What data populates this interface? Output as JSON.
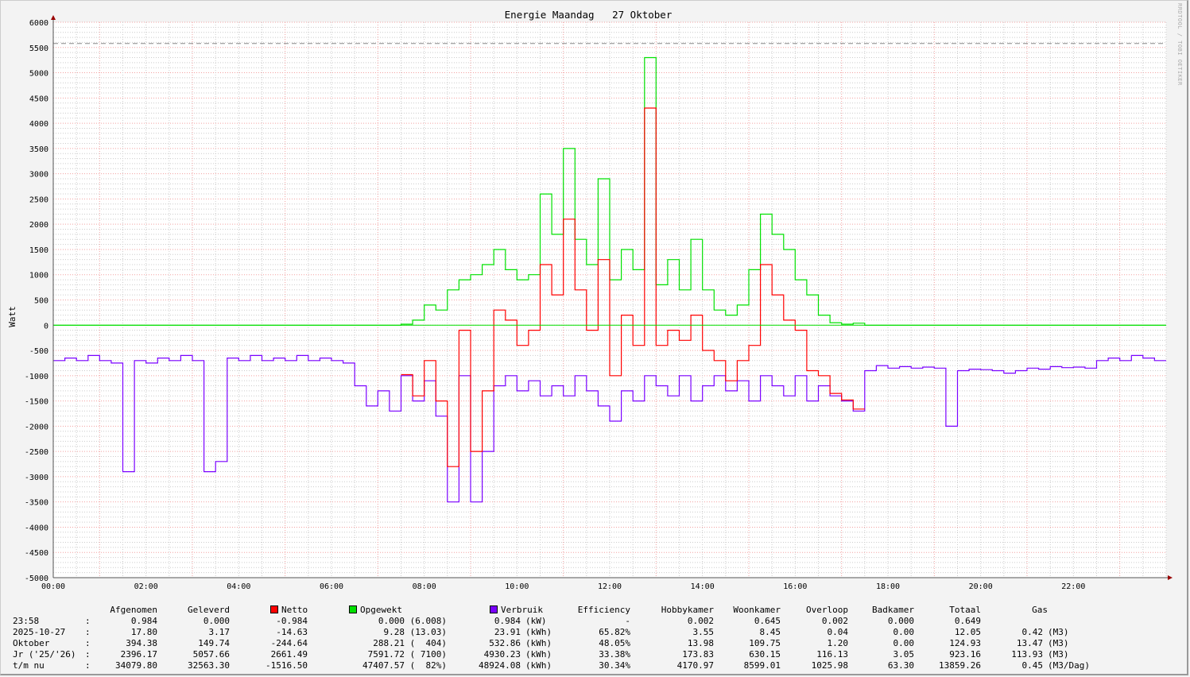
{
  "chart_data": {
    "type": "line",
    "title": "Energie Maandag   27 Oktober",
    "ylabel": "Watt",
    "watermark": "RRDTOOL / TOBI OETIKER",
    "ylim": [
      -5000,
      6000
    ],
    "yticks": [
      6000,
      5500,
      5000,
      4500,
      4000,
      3500,
      3000,
      2500,
      2000,
      1500,
      1000,
      500,
      0,
      -500,
      -1000,
      -1500,
      -2000,
      -2500,
      -3000,
      -3500,
      -4000,
      -4500,
      -5000
    ],
    "xticks": [
      "00:00",
      "02:00",
      "04:00",
      "06:00",
      "08:00",
      "10:00",
      "12:00",
      "14:00",
      "16:00",
      "18:00",
      "20:00",
      "22:00"
    ],
    "x_interval_minutes": 15,
    "reference_line": 5580,
    "series": [
      {
        "name": "Opgewekt",
        "color": "#00e000",
        "values": [
          0,
          0,
          0,
          0,
          0,
          0,
          0,
          0,
          0,
          0,
          0,
          0,
          0,
          0,
          0,
          0,
          0,
          0,
          0,
          0,
          0,
          0,
          0,
          0,
          0,
          0,
          0,
          0,
          0,
          0,
          20,
          100,
          400,
          300,
          700,
          900,
          1000,
          1200,
          1500,
          1100,
          900,
          1000,
          2600,
          1800,
          3500,
          1700,
          1200,
          2900,
          900,
          1500,
          1100,
          5300,
          800,
          1300,
          700,
          1700,
          700,
          300,
          200,
          400,
          1100,
          2200,
          1800,
          1500,
          900,
          600,
          200,
          50,
          20,
          40,
          0,
          0,
          0,
          0,
          0,
          0,
          0,
          0,
          0,
          0,
          0,
          0,
          0,
          0,
          0,
          0,
          0,
          0,
          0,
          0,
          0,
          0,
          0,
          0,
          0,
          0
        ]
      },
      {
        "name": "Verbruik",
        "color": "#7a00ff",
        "values": [
          -700,
          -650,
          -700,
          -600,
          -700,
          -750,
          -2900,
          -700,
          -750,
          -650,
          -700,
          -600,
          -700,
          -2900,
          -2700,
          -650,
          -700,
          -600,
          -700,
          -650,
          -700,
          -600,
          -700,
          -650,
          -700,
          -750,
          -1200,
          -1600,
          -1300,
          -1700,
          -1000,
          -1500,
          -1100,
          -1800,
          -3500,
          -1000,
          -3500,
          -2500,
          -1200,
          -1000,
          -1300,
          -1100,
          -1400,
          -1200,
          -1400,
          -1000,
          -1300,
          -1600,
          -1900,
          -1300,
          -1500,
          -1000,
          -1200,
          -1400,
          -1000,
          -1500,
          -1200,
          -1000,
          -1300,
          -1100,
          -1500,
          -1000,
          -1200,
          -1400,
          -1000,
          -1500,
          -1200,
          -1400,
          -1500,
          -1700,
          -900,
          -800,
          -850,
          -820,
          -850,
          -830,
          -850,
          -2000,
          -900,
          -870,
          -880,
          -900,
          -950,
          -900,
          -850,
          -870,
          -820,
          -840,
          -830,
          -850,
          -700,
          -650,
          -700,
          -600,
          -650,
          -700
        ]
      },
      {
        "name": "Netto",
        "color": "#ff0000",
        "derived": "Opgewekt + Verbruik"
      }
    ]
  },
  "table": {
    "headers": [
      "Afgenomen",
      "Geleverd",
      "Netto",
      "Opgewekt",
      "Verbruik",
      "Efficiency",
      "Hobbykamer",
      "Woonkamer",
      "Overloop",
      "Badkamer",
      "Totaal",
      "Gas"
    ],
    "rows": [
      {
        "label": "23:58",
        "sep": ":",
        "afgenomen": "0.984",
        "geleverd": "0.000",
        "netto": "-0.984",
        "opgewekt": "0.000 (6.008)",
        "verbruik": "0.984",
        "verbruik_unit": "(kW)",
        "efficiency": "-",
        "hobbykamer": "0.002",
        "woonkamer": "0.645",
        "overloop": "0.002",
        "badkamer": "0.000",
        "totaal": "0.649",
        "gas": "",
        "gas_unit": ""
      },
      {
        "label": "2025-10-27",
        "sep": ":",
        "afgenomen": "17.80",
        "geleverd": "3.17",
        "netto": "-14.63",
        "opgewekt": "9.28 (13.03)",
        "verbruik": "23.91",
        "verbruik_unit": "(kWh)",
        "efficiency": "65.82%",
        "hobbykamer": "3.55",
        "woonkamer": "8.45",
        "overloop": "0.04",
        "badkamer": "0.00",
        "totaal": "12.05",
        "gas": "0.42",
        "gas_unit": "(M3)"
      },
      {
        "label": "Oktober",
        "sep": ":",
        "afgenomen": "394.38",
        "geleverd": "149.74",
        "netto": "-244.64",
        "opgewekt": "288.21 (  404)",
        "verbruik": "532.86",
        "verbruik_unit": "(kWh)",
        "efficiency": "48.05%",
        "hobbykamer": "13.98",
        "woonkamer": "109.75",
        "overloop": "1.20",
        "badkamer": "0.00",
        "totaal": "124.93",
        "gas": "13.47",
        "gas_unit": "(M3)"
      },
      {
        "label": "Jr ('25/'26)",
        "sep": ":",
        "afgenomen": "2396.17",
        "geleverd": "5057.66",
        "netto": "2661.49",
        "opgewekt": "7591.72 ( 7100)",
        "verbruik": "4930.23",
        "verbruik_unit": "(kWh)",
        "efficiency": "33.38%",
        "hobbykamer": "173.83",
        "woonkamer": "630.15",
        "overloop": "116.13",
        "badkamer": "3.05",
        "totaal": "923.16",
        "gas": "113.93",
        "gas_unit": "(M3)"
      },
      {
        "label": "t/m nu",
        "sep": ":",
        "afgenomen": "34079.80",
        "geleverd": "32563.30",
        "netto": "-1516.50",
        "opgewekt": "47407.57 (  82%)",
        "verbruik": "48924.08",
        "verbruik_unit": "(kWh)",
        "efficiency": "30.34%",
        "hobbykamer": "4170.97",
        "woonkamer": "8599.01",
        "overloop": "1025.98",
        "badkamer": "63.30",
        "totaal": "13859.26",
        "gas": "0.45",
        "gas_unit": "(M3/Dag)"
      }
    ]
  }
}
